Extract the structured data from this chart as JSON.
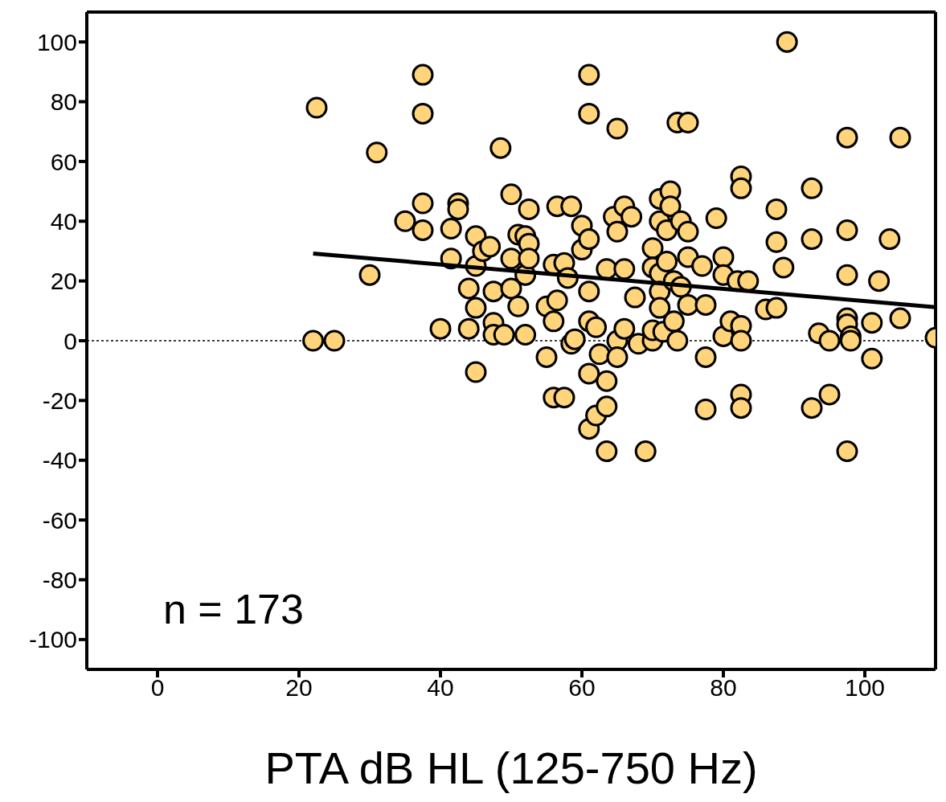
{
  "chart_data": {
    "type": "scatter",
    "xlabel": "PTA dB HL (125-750 Hz)",
    "xlim": [
      -10,
      110
    ],
    "ylim": [
      -110,
      110
    ],
    "xticks": [
      0,
      20,
      40,
      60,
      80,
      100
    ],
    "yticks": [
      -100,
      -80,
      -60,
      -40,
      -20,
      0,
      20,
      40,
      60,
      80,
      100
    ],
    "grid": false,
    "legend": false,
    "marker": "circle",
    "annotations": [
      "n = 173"
    ],
    "ref_lines": [
      {
        "axis": "y",
        "value": 0,
        "line_style": "dotted",
        "color": "#000000"
      }
    ],
    "series": [
      {
        "color": "#ffd47a",
        "x": [
          22.5,
          22,
          25,
          31,
          30,
          35,
          37.5,
          37.5,
          37.5,
          37.5,
          40,
          41.5,
          41.5,
          42.5,
          42.5,
          44,
          44,
          45,
          45,
          45,
          45,
          46,
          47,
          47.5,
          47.5,
          47.5,
          48.5,
          49,
          50,
          50,
          50,
          51,
          51,
          52,
          52,
          52,
          52.5,
          52.5,
          52.5,
          55,
          55,
          56,
          56,
          56,
          56.5,
          56.5,
          57.5,
          57.5,
          58,
          58.5,
          58.5,
          59,
          60,
          60,
          61,
          61,
          61,
          61,
          61,
          61,
          61,
          62,
          62,
          62.5,
          63.5,
          63.5,
          63.5,
          63.5,
          64.5,
          65,
          65,
          65,
          65,
          66,
          66,
          66,
          67,
          67.5,
          68,
          69,
          70,
          70,
          70,
          70,
          71,
          71,
          71,
          71,
          71,
          71.5,
          72,
          72,
          72.5,
          72.5,
          73,
          73,
          73.5,
          73.5,
          74,
          74,
          75,
          75,
          75,
          75,
          77,
          77.5,
          77.5,
          77.5,
          79,
          80,
          80,
          80,
          81,
          82,
          82.5,
          82.5,
          82.5,
          82.5,
          82.5,
          82.5,
          83.5,
          86,
          87.5,
          87.5,
          87.5,
          88.5,
          89,
          92.5,
          92.5,
          92.5,
          93.5,
          95,
          95,
          97.5,
          97.5,
          97.5,
          97.5,
          97.5,
          97.5,
          98,
          98,
          101,
          101,
          102,
          103.5,
          105,
          105,
          110
        ],
        "values": [
          78,
          0,
          0,
          63,
          22,
          40,
          89,
          76,
          46,
          37,
          4,
          37.5,
          27.5,
          46,
          44,
          17.5,
          4,
          35,
          25,
          11,
          -10.5,
          30,
          31.5,
          16.5,
          6,
          2,
          64.5,
          2,
          49,
          27.5,
          17.5,
          35.5,
          11.5,
          35,
          22,
          2,
          44,
          32.5,
          27.5,
          11.5,
          -5.5,
          25.5,
          6.5,
          -19,
          45,
          13.5,
          26,
          -19,
          21,
          45,
          -1,
          0.5,
          38.5,
          30.5,
          89,
          76,
          34,
          16.5,
          6.5,
          -11,
          -29.5,
          4.5,
          -25,
          -4.5,
          24,
          -13.5,
          -22,
          -37,
          41.5,
          71,
          36.5,
          0,
          -5.5,
          45,
          24,
          4,
          41.5,
          14.5,
          -1,
          -37,
          31,
          24.5,
          0,
          3.5,
          47.5,
          40,
          22.5,
          16.5,
          11,
          3,
          37,
          26.5,
          50,
          45,
          6.5,
          20,
          73,
          0,
          40,
          18,
          73,
          36.5,
          28,
          12,
          25,
          12,
          -5.5,
          -23,
          41,
          28,
          22,
          1.5,
          6.5,
          20,
          55,
          51,
          5,
          0,
          -18,
          -22.5,
          20,
          10.5,
          44,
          33,
          11,
          24.5,
          100,
          51,
          34,
          -22.5,
          2.5,
          0,
          -18,
          68,
          37,
          22,
          7.5,
          5.5,
          -37,
          1.5,
          0,
          6,
          -6,
          20,
          34,
          68,
          7.5,
          1
        ]
      },
      {
        "type": "line",
        "color": "#000000",
        "line_style": "solid",
        "marker": "none",
        "x": [
          22,
          110
        ],
        "values": [
          29.2,
          11.2
        ]
      }
    ]
  }
}
